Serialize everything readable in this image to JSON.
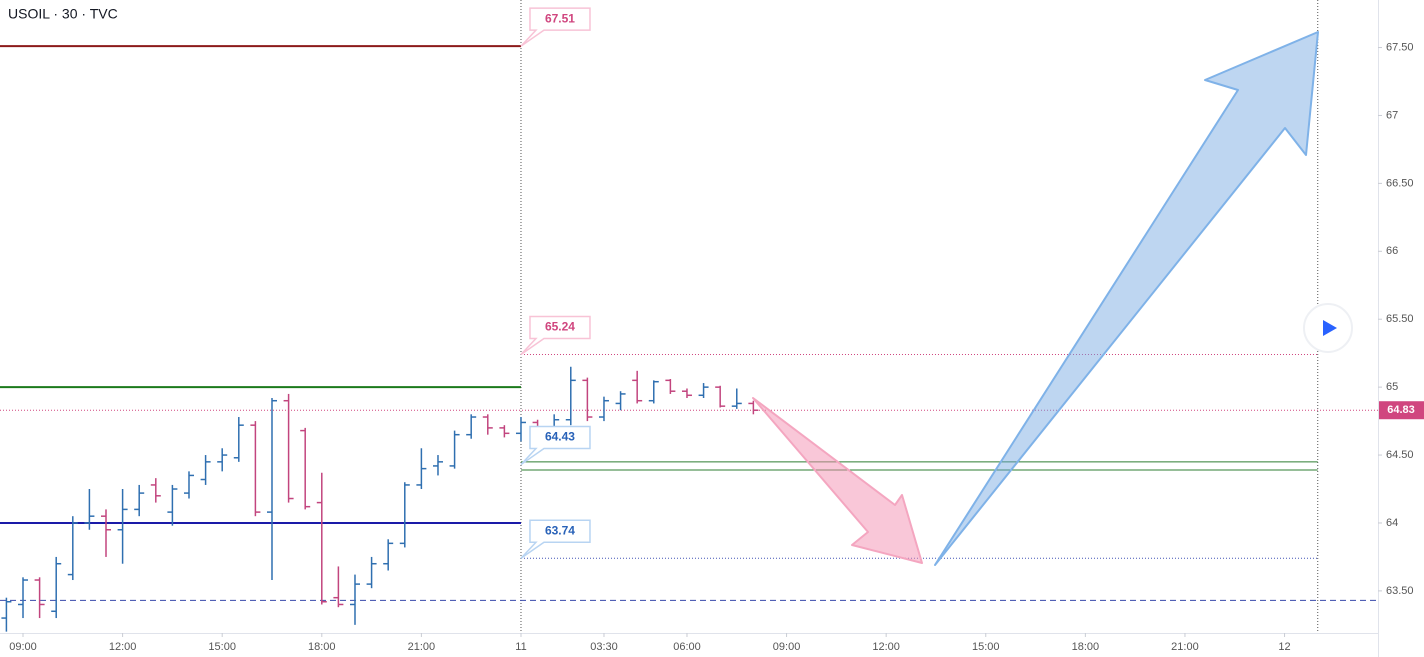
{
  "chart_data": {
    "type": "ohlc",
    "title": "USOIL · 30 · TVC",
    "up_color": "#2f6fb0",
    "down_color": "#c2457e",
    "x": [
      -1,
      0,
      1,
      2,
      3,
      4,
      5,
      6,
      7,
      8,
      9,
      10,
      11,
      12,
      13,
      14,
      15,
      16,
      17,
      18,
      19,
      20,
      21,
      22,
      23,
      24,
      25,
      26,
      27,
      28,
      29,
      30,
      31,
      32,
      33,
      34,
      35,
      36,
      37,
      38,
      39,
      40,
      41,
      42,
      43,
      44
    ],
    "open": [
      63.3,
      63.4,
      63.58,
      63.35,
      63.62,
      64.0,
      64.05,
      63.95,
      64.1,
      64.28,
      64.08,
      64.22,
      64.32,
      64.45,
      64.48,
      64.72,
      64.08,
      64.9,
      64.68,
      64.15,
      63.45,
      63.4,
      63.55,
      63.7,
      63.85,
      64.28,
      64.42,
      64.42,
      64.65,
      64.78,
      64.7,
      64.66,
      64.74,
      64.7,
      64.76,
      65.05,
      64.78,
      64.88,
      65.05,
      64.9,
      65.05,
      64.97,
      64.94,
      65.0,
      64.86,
      64.88
    ],
    "high": [
      63.45,
      63.6,
      63.6,
      63.75,
      64.05,
      64.25,
      64.1,
      64.25,
      64.28,
      64.33,
      64.28,
      64.38,
      64.5,
      64.55,
      64.78,
      64.75,
      64.92,
      64.95,
      64.7,
      64.37,
      63.68,
      63.62,
      63.75,
      63.88,
      64.3,
      64.55,
      64.5,
      64.68,
      64.8,
      64.8,
      64.72,
      64.78,
      64.76,
      64.8,
      65.15,
      65.07,
      64.93,
      64.97,
      65.12,
      65.05,
      65.06,
      64.99,
      65.03,
      65.01,
      64.99,
      64.9
    ],
    "low": [
      63.2,
      63.3,
      63.3,
      63.3,
      63.58,
      63.95,
      63.75,
      63.7,
      64.05,
      64.15,
      63.98,
      64.18,
      64.28,
      64.38,
      64.45,
      64.05,
      63.58,
      64.15,
      64.1,
      63.4,
      63.38,
      63.25,
      63.52,
      63.65,
      63.82,
      64.25,
      64.35,
      64.4,
      64.62,
      64.65,
      64.63,
      64.6,
      64.65,
      64.65,
      64.72,
      64.75,
      64.75,
      64.83,
      64.88,
      64.88,
      64.95,
      64.92,
      64.92,
      64.85,
      64.84,
      64.8
    ],
    "close": [
      63.42,
      63.58,
      63.4,
      63.7,
      64.0,
      64.05,
      63.95,
      64.1,
      64.22,
      64.2,
      64.25,
      64.35,
      64.45,
      64.5,
      64.72,
      64.08,
      64.9,
      64.18,
      64.12,
      63.42,
      63.4,
      63.55,
      63.7,
      63.85,
      64.28,
      64.4,
      64.45,
      64.65,
      64.78,
      64.7,
      64.66,
      64.74,
      64.7,
      64.76,
      65.05,
      64.78,
      64.9,
      64.95,
      64.9,
      65.04,
      64.97,
      64.94,
      65.0,
      64.86,
      64.88,
      64.83
    ],
    "xlim": [
      -1.386,
      81.63
    ],
    "ylim": [
      63.19,
      67.85
    ],
    "xticks": [
      {
        "value": 0,
        "label": "09:00"
      },
      {
        "value": 6,
        "label": "12:00"
      },
      {
        "value": 12,
        "label": "15:00"
      },
      {
        "value": 18,
        "label": "18:00"
      },
      {
        "value": 24,
        "label": "21:00"
      },
      {
        "value": 30,
        "label": "11"
      },
      {
        "value": 35,
        "label": "03:30"
      },
      {
        "value": 40,
        "label": "06:00"
      },
      {
        "value": 46,
        "label": "09:00"
      },
      {
        "value": 52,
        "label": "12:00"
      },
      {
        "value": 58,
        "label": "15:00"
      },
      {
        "value": 64,
        "label": "18:00"
      },
      {
        "value": 70,
        "label": "21:00"
      },
      {
        "value": 76,
        "label": "12"
      }
    ],
    "yticks": [
      {
        "value": 63.5,
        "label": "63.50"
      },
      64,
      {
        "value": 64.5,
        "label": "64.50"
      },
      65,
      {
        "value": 65.5,
        "label": "65.50"
      },
      66,
      {
        "value": 66.5,
        "label": "66.50"
      },
      67,
      {
        "value": 67.5,
        "label": "67.50"
      }
    ],
    "yticks_labels_fix": null,
    "vlines": [
      30,
      78
    ],
    "levels": [
      {
        "value": 67.51,
        "color": "#8b1a1a",
        "style": "solid",
        "span": "left"
      },
      {
        "value": 65.0,
        "color": "#1b7a1b",
        "style": "solid",
        "span": "left"
      },
      {
        "value": 64.0,
        "color": "#1a1aa8",
        "style": "solid",
        "span": "left"
      },
      {
        "value": 63.43,
        "color": "#3949ab",
        "style": "dashed",
        "span": "full"
      },
      {
        "value": 65.24,
        "color": "#d0467f",
        "style": "dotted",
        "span": "right"
      },
      {
        "value": 64.45,
        "color": "#2e7d32",
        "style": "thin",
        "span": "right"
      },
      {
        "value": 64.39,
        "color": "#2e7d32",
        "style": "thin",
        "span": "right"
      },
      {
        "value": 63.74,
        "color": "#3f51b5",
        "style": "dotted",
        "span": "right"
      }
    ],
    "callouts": [
      {
        "value": 67.51,
        "color": "#d0467f",
        "border": "#f8c3d6"
      },
      {
        "value": 65.24,
        "color": "#d0467f",
        "border": "#f8c3d6"
      },
      {
        "value": 64.43,
        "color": "#2962b8",
        "border": "#b8d4f2"
      },
      {
        "value": 63.74,
        "color": "#2962b8",
        "border": "#b8d4f2"
      }
    ],
    "last_price": 64.83,
    "last_price_color": "#d0467f"
  }
}
